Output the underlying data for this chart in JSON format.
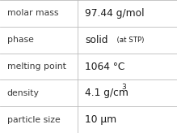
{
  "rows": [
    {
      "label": "molar mass",
      "value_parts": [
        {
          "text": "97.44 g/mol",
          "style": "normal"
        }
      ]
    },
    {
      "label": "phase",
      "value_parts": [
        {
          "text": "solid",
          "style": "bold"
        },
        {
          "text": "  (at STP)",
          "style": "small"
        }
      ]
    },
    {
      "label": "melting point",
      "value_parts": [
        {
          "text": "1064 °C",
          "style": "normal"
        }
      ]
    },
    {
      "label": "density",
      "value_parts": [
        {
          "text": "4.1 g/cm",
          "style": "normal"
        },
        {
          "text": "3",
          "style": "super"
        }
      ]
    },
    {
      "label": "particle size",
      "value_parts": [
        {
          "text": "10 µm",
          "style": "normal"
        }
      ]
    }
  ],
  "bg_color": "#ffffff",
  "line_color": "#bbbbbb",
  "label_color": "#3a3a3a",
  "value_color": "#1a1a1a",
  "label_fontsize": 7.8,
  "value_fontsize": 8.8,
  "small_fontsize": 6.2,
  "super_fontsize": 6.5,
  "col_split": 0.44,
  "fig_width": 2.19,
  "fig_height": 1.64,
  "dpi": 100
}
